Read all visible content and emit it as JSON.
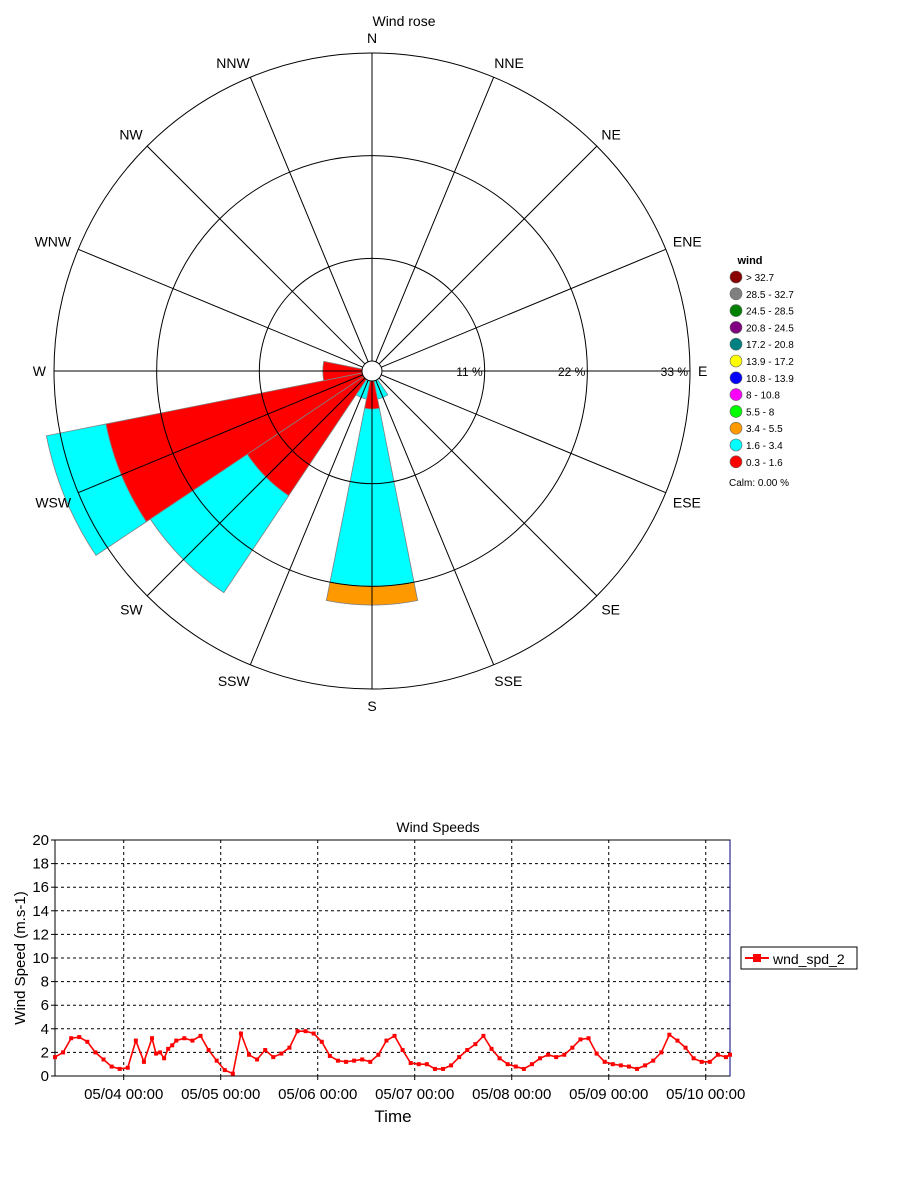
{
  "chart_data": [
    {
      "type": "windrose",
      "title": "Wind rose",
      "directions": [
        "N",
        "NNE",
        "NE",
        "ENE",
        "E",
        "ESE",
        "SE",
        "SSE",
        "S",
        "SSW",
        "SW",
        "WSW",
        "W",
        "WNW",
        "NW",
        "NNW"
      ],
      "radial_ticks": [
        "11 %",
        "22 %",
        "33 %"
      ],
      "radial_max_percent": 33,
      "legend": {
        "title": "wind",
        "bins": [
          {
            "label": "> 32.7",
            "color": "#8b0000"
          },
          {
            "label": "28.5 - 32.7",
            "color": "#808080"
          },
          {
            "label": "24.5 - 28.5",
            "color": "#008000"
          },
          {
            "label": "20.8 - 24.5",
            "color": "#800080"
          },
          {
            "label": "17.2 - 20.8",
            "color": "#008080"
          },
          {
            "label": "13.9 - 17.2",
            "color": "#ffff00"
          },
          {
            "label": "10.8 - 13.9",
            "color": "#0000ff"
          },
          {
            "label": "8 - 10.8",
            "color": "#ff00ff"
          },
          {
            "label": "5.5 - 8",
            "color": "#00ff00"
          },
          {
            "label": "3.4 - 5.5",
            "color": "#ff9900"
          },
          {
            "label": "1.6 - 3.4",
            "color": "#00ffff"
          },
          {
            "label": "0.3 - 1.6",
            "color": "#ff0000"
          }
        ],
        "calm": "Calm: 0.00 %"
      },
      "sectors": [
        {
          "direction": "S",
          "bins": {
            "0.3 - 1.6": 3.0,
            "1.6 - 3.4": 19.0,
            "3.4 - 5.5": 2.0
          }
        },
        {
          "direction": "SSE",
          "bins": {
            "0.3 - 1.6": 0.0,
            "1.6 - 3.4": 2.0
          }
        },
        {
          "direction": "SSW",
          "bins": {
            "0.3 - 1.6": 0.0,
            "1.6 - 3.4": 2.0
          }
        },
        {
          "direction": "SW",
          "bins": {
            "0.3 - 1.6": 0.0,
            "1.6 - 3.4": 0.0
          }
        },
        {
          "direction": "WSW",
          "bins": {
            "0.3 - 1.6": 28.0,
            "1.6 - 3.4": 6.5
          }
        },
        {
          "direction": "SW",
          "bins": {
            "0.3 - 1.6": 15.0,
            "1.6 - 3.4": 12.5
          }
        },
        {
          "direction": "W",
          "bins": {
            "0.3 - 1.6": 4.2
          }
        }
      ]
    },
    {
      "type": "line",
      "title": "Wind Speeds",
      "xlabel": "Time",
      "ylabel": "Wind Speed (m.s-1)",
      "ylim": [
        0,
        20
      ],
      "yticks": [
        0,
        2,
        4,
        6,
        8,
        10,
        12,
        14,
        16,
        18,
        20
      ],
      "x_range_days": [
        "05/03 07:00",
        "05/10 06:00"
      ],
      "xtick_labels": [
        "05/04 00:00",
        "05/05 00:00",
        "05/06 00:00",
        "05/07 00:00",
        "05/08 00:00",
        "05/09 00:00",
        "05/10 00:00"
      ],
      "grid": true,
      "legend_position": "right",
      "series": [
        {
          "name": "wnd_spd_2",
          "color": "#ff0000",
          "x": [
            "05/03 07:00",
            "05/03 09:00",
            "05/03 11:00",
            "05/03 13:00",
            "05/03 15:00",
            "05/03 17:00",
            "05/03 19:00",
            "05/03 21:00",
            "05/03 23:00",
            "05/04 01:00",
            "05/04 03:00",
            "05/04 05:00",
            "05/04 07:00",
            "05/04 08:00",
            "05/04 09:00",
            "05/04 10:00",
            "05/04 11:00",
            "05/04 12:00",
            "05/04 13:00",
            "05/04 15:00",
            "05/04 17:00",
            "05/04 19:00",
            "05/04 21:00",
            "05/04 23:00",
            "05/05 01:00",
            "05/05 03:00",
            "05/05 05:00",
            "05/05 07:00",
            "05/05 09:00",
            "05/05 11:00",
            "05/05 13:00",
            "05/05 15:00",
            "05/05 17:00",
            "05/05 19:00",
            "05/05 21:00",
            "05/05 23:00",
            "05/06 01:00",
            "05/06 03:00",
            "05/06 05:00",
            "05/06 07:00",
            "05/06 09:00",
            "05/06 11:00",
            "05/06 13:00",
            "05/06 15:00",
            "05/06 17:00",
            "05/06 19:00",
            "05/06 21:00",
            "05/06 23:00",
            "05/07 01:00",
            "05/07 03:00",
            "05/07 05:00",
            "05/07 07:00",
            "05/07 09:00",
            "05/07 11:00",
            "05/07 13:00",
            "05/07 15:00",
            "05/07 17:00",
            "05/07 19:00",
            "05/07 21:00",
            "05/07 23:00",
            "05/08 01:00",
            "05/08 03:00",
            "05/08 05:00",
            "05/08 07:00",
            "05/08 09:00",
            "05/08 11:00",
            "05/08 13:00",
            "05/08 15:00",
            "05/08 17:00",
            "05/08 19:00",
            "05/08 21:00",
            "05/08 23:00",
            "05/09 01:00",
            "05/09 03:00",
            "05/09 05:00",
            "05/09 07:00",
            "05/09 09:00",
            "05/09 11:00",
            "05/09 13:00",
            "05/09 15:00",
            "05/09 17:00",
            "05/09 19:00",
            "05/09 21:00",
            "05/09 23:00",
            "05/10 01:00",
            "05/10 03:00",
            "05/10 05:00",
            "05/10 06:00"
          ],
          "values": [
            1.6,
            2.0,
            3.2,
            3.3,
            2.9,
            2.0,
            1.4,
            0.8,
            0.6,
            0.7,
            3.0,
            1.2,
            3.2,
            1.9,
            2.0,
            1.5,
            2.3,
            2.6,
            3.0,
            3.2,
            3.0,
            3.4,
            2.2,
            1.3,
            0.5,
            0.2,
            3.6,
            1.8,
            1.4,
            2.2,
            1.6,
            1.9,
            2.4,
            3.8,
            3.8,
            3.6,
            2.9,
            1.7,
            1.3,
            1.2,
            1.3,
            1.4,
            1.2,
            1.8,
            3.0,
            3.4,
            2.2,
            1.1,
            1.0,
            1.0,
            0.6,
            0.6,
            0.9,
            1.6,
            2.2,
            2.7,
            3.4,
            2.3,
            1.5,
            1.0,
            0.8,
            0.6,
            1.0,
            1.5,
            1.8,
            1.6,
            1.8,
            2.4,
            3.1,
            3.2,
            1.9,
            1.2,
            1.0,
            0.9,
            0.8,
            0.6,
            0.9,
            1.3,
            2.0,
            3.5,
            3.0,
            2.4,
            1.5,
            1.2,
            1.2,
            1.8,
            1.6,
            1.8
          ]
        }
      ]
    }
  ]
}
